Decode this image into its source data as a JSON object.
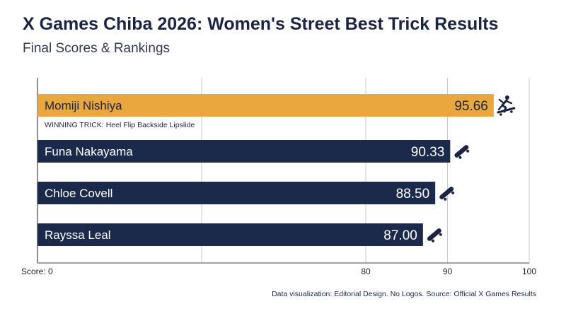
{
  "chart_data": {
    "type": "bar",
    "orientation": "horizontal",
    "title": "X Games Chiba 2026: Women's Street Best Trick Results",
    "subtitle": "Final Scores & Rankings",
    "categories": [
      "Momiji Nishiya",
      "Funa Nakayama",
      "Chloe Covell",
      "Rayssa Leal"
    ],
    "values": [
      95.66,
      90.33,
      88.5,
      87.0
    ],
    "value_labels": [
      "95.66",
      "90.33",
      "88.50",
      "87.00"
    ],
    "winner_index": 0,
    "annotation": "WINNING TRICK: Heel Flip Backside Lipslide",
    "xaxis": {
      "ticks": [
        {
          "value": 0,
          "label": "Score: 0"
        },
        {
          "value": 80,
          "label": "80"
        },
        {
          "value": 90,
          "label": "90"
        },
        {
          "value": 100,
          "label": "100"
        }
      ],
      "gridlines": [
        0,
        80,
        90,
        100
      ],
      "scale": "broken: 0 then 80-100 expanded"
    },
    "grid": true,
    "legend": "none",
    "colors": {
      "winner": "#E9A83D",
      "others": "#1B2A4A",
      "grid": "#c9c9c9"
    },
    "icons": [
      "skateboarder-icon",
      "skateboard-icon",
      "skateboard-icon",
      "skateboard-icon"
    ]
  },
  "footer": "Data visualization: Editorial Design. No Logos. Source: Official X Games Results"
}
